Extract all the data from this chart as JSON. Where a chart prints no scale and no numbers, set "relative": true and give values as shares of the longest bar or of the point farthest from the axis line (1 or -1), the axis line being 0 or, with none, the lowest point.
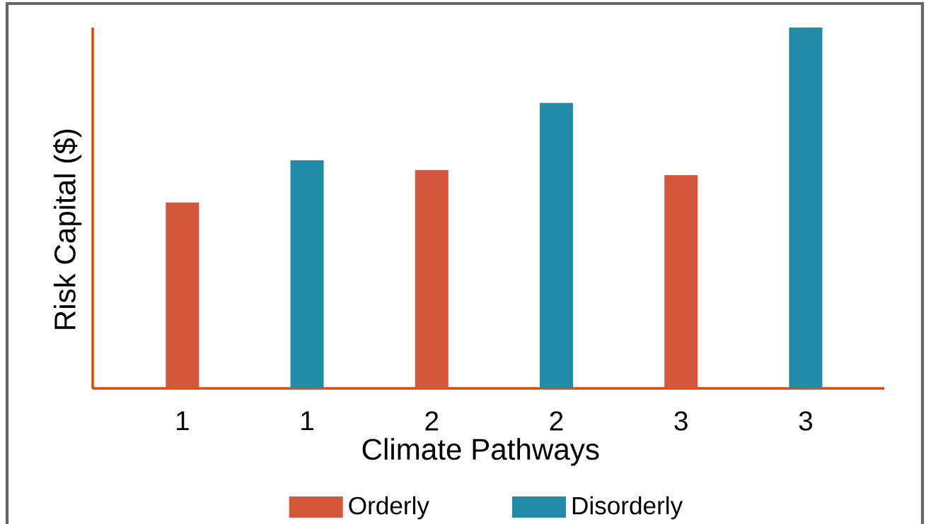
{
  "chart_data": {
    "type": "bar",
    "xlabel": "Climate Pathways",
    "ylabel": "Risk Capital ($)",
    "categories": [
      "1",
      "1",
      "2",
      "2",
      "3",
      "3"
    ],
    "relative": true,
    "legend": "bottom",
    "series": [
      {
        "name": "Orderly",
        "color": "#d4573b",
        "values": [
          0.515,
          null,
          0.605,
          null,
          0.591,
          null
        ]
      },
      {
        "name": "Disorderly",
        "color": "#218ba8",
        "values": [
          null,
          0.632,
          null,
          0.791,
          null,
          1.0
        ]
      }
    ]
  }
}
